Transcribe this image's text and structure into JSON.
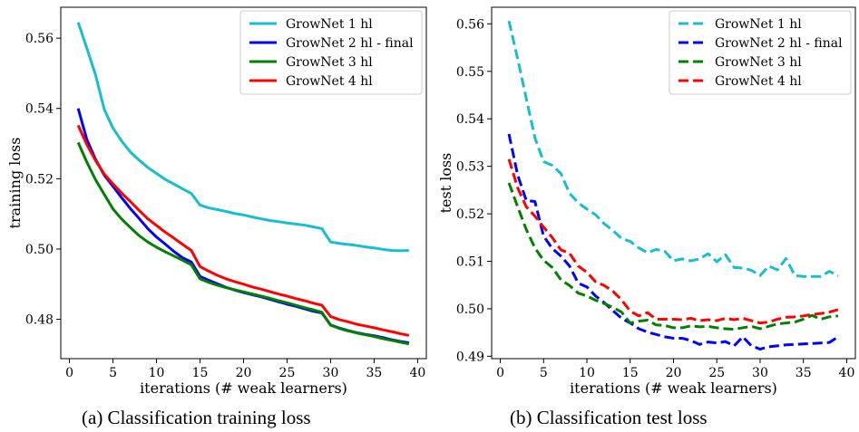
{
  "chart_data": [
    {
      "type": "line",
      "caption": "(a)  Classification training loss",
      "xlabel": "iterations (# weak learners)",
      "ylabel": "training loss",
      "xlim": [
        -1,
        41
      ],
      "ylim": [
        0.4688,
        0.5688
      ],
      "xticks": [
        0,
        5,
        10,
        15,
        20,
        25,
        30,
        35,
        40
      ],
      "xtick_labels": [
        "0",
        "5",
        "10",
        "15",
        "20",
        "25",
        "30",
        "35",
        "40"
      ],
      "yticks": [
        0.48,
        0.5,
        0.52,
        0.54,
        0.56
      ],
      "ytick_labels": [
        "0.48",
        "0.50",
        "0.52",
        "0.54",
        "0.56"
      ],
      "line_style": "solid",
      "legend_position": "top-right",
      "grid": false,
      "x": [
        1,
        2,
        3,
        4,
        5,
        6,
        7,
        8,
        9,
        10,
        11,
        12,
        13,
        14,
        15,
        16,
        17,
        18,
        19,
        20,
        21,
        22,
        23,
        24,
        25,
        26,
        27,
        28,
        29,
        30,
        31,
        32,
        33,
        34,
        35,
        36,
        37,
        38,
        39
      ],
      "series": [
        {
          "name": "GrowNet 1 hl",
          "color": "#17becf",
          "values": [
            0.5645,
            0.5571,
            0.5495,
            0.5397,
            0.5344,
            0.5307,
            0.5276,
            0.5253,
            0.5232,
            0.5215,
            0.5198,
            0.5185,
            0.5171,
            0.5158,
            0.5125,
            0.5117,
            0.5112,
            0.5107,
            0.5101,
            0.5097,
            0.5091,
            0.5086,
            0.5081,
            0.5078,
            0.5074,
            0.5071,
            0.5068,
            0.5063,
            0.5058,
            0.502,
            0.5016,
            0.5013,
            0.501,
            0.5006,
            0.5003,
            0.4999,
            0.4996,
            0.4995,
            0.4996
          ]
        },
        {
          "name": "GrowNet 2 hl - final",
          "color": "#0000ff",
          "values": [
            0.54,
            0.5311,
            0.5255,
            0.521,
            0.5178,
            0.5146,
            0.5115,
            0.5087,
            0.5058,
            0.5034,
            0.5014,
            0.4993,
            0.4975,
            0.4963,
            0.4922,
            0.4911,
            0.4901,
            0.4891,
            0.4883,
            0.4876,
            0.487,
            0.4864,
            0.4857,
            0.485,
            0.4843,
            0.4837,
            0.483,
            0.4823,
            0.4818,
            0.4784,
            0.4775,
            0.4768,
            0.4762,
            0.4757,
            0.4753,
            0.4748,
            0.4742,
            0.4737,
            0.4733
          ]
        },
        {
          "name": "GrowNet 3 hl",
          "color": "#008000",
          "values": [
            0.5303,
            0.5247,
            0.5197,
            0.5155,
            0.5114,
            0.5085,
            0.5061,
            0.5038,
            0.502,
            0.5005,
            0.4992,
            0.498,
            0.4968,
            0.4955,
            0.4915,
            0.4905,
            0.4897,
            0.489,
            0.4884,
            0.4878,
            0.4872,
            0.4866,
            0.486,
            0.4853,
            0.4847,
            0.484,
            0.4833,
            0.4827,
            0.482,
            0.4783,
            0.4774,
            0.4767,
            0.4761,
            0.4756,
            0.4751,
            0.4745,
            0.474,
            0.4735,
            0.473
          ]
        },
        {
          "name": "GrowNet 4 hl",
          "color": "#ff0000",
          "values": [
            0.5352,
            0.5297,
            0.5252,
            0.5213,
            0.5185,
            0.5159,
            0.5135,
            0.511,
            0.5086,
            0.5067,
            0.5048,
            0.5031,
            0.5013,
            0.4996,
            0.495,
            0.4937,
            0.4925,
            0.4915,
            0.4907,
            0.49,
            0.4892,
            0.4886,
            0.4879,
            0.4872,
            0.4866,
            0.4859,
            0.4853,
            0.4846,
            0.484,
            0.4808,
            0.4799,
            0.4793,
            0.4786,
            0.4781,
            0.4776,
            0.477,
            0.4765,
            0.4759,
            0.4754
          ]
        }
      ]
    },
    {
      "type": "line",
      "caption": "(b)  Classification test loss",
      "xlabel": "iterations (# weak learners)",
      "ylabel": "test loss",
      "xlim": [
        -1,
        41
      ],
      "ylim": [
        0.4895,
        0.5635
      ],
      "xticks": [
        0,
        5,
        10,
        15,
        20,
        25,
        30,
        35,
        40
      ],
      "xtick_labels": [
        "0",
        "5",
        "10",
        "15",
        "20",
        "25",
        "30",
        "35",
        "40"
      ],
      "yticks": [
        0.49,
        0.5,
        0.51,
        0.52,
        0.53,
        0.54,
        0.55,
        0.56
      ],
      "ytick_labels": [
        "0.49",
        "0.50",
        "0.51",
        "0.52",
        "0.53",
        "0.54",
        "0.55",
        "0.56"
      ],
      "line_style": "dashed",
      "legend_position": "top-right",
      "grid": false,
      "x": [
        1,
        2,
        3,
        4,
        5,
        6,
        7,
        8,
        9,
        10,
        11,
        12,
        13,
        14,
        15,
        16,
        17,
        18,
        19,
        20,
        21,
        22,
        23,
        24,
        25,
        26,
        27,
        28,
        29,
        30,
        31,
        32,
        33,
        34,
        35,
        36,
        37,
        38,
        39
      ],
      "series": [
        {
          "name": "GrowNet 1 hl",
          "color": "#17becf",
          "values": [
            0.5606,
            0.5527,
            0.5443,
            0.536,
            0.531,
            0.5302,
            0.5285,
            0.5243,
            0.5223,
            0.521,
            0.5198,
            0.5179,
            0.5165,
            0.5148,
            0.5142,
            0.5128,
            0.5118,
            0.5125,
            0.5121,
            0.5101,
            0.5105,
            0.5101,
            0.5105,
            0.5116,
            0.5099,
            0.5114,
            0.5087,
            0.5086,
            0.5081,
            0.507,
            0.509,
            0.5082,
            0.5106,
            0.507,
            0.5068,
            0.5068,
            0.5068,
            0.5079,
            0.5069
          ]
        },
        {
          "name": "GrowNet 2 hl - final",
          "color": "#0000ff",
          "values": [
            0.5368,
            0.5282,
            0.5228,
            0.5226,
            0.5153,
            0.5127,
            0.5111,
            0.509,
            0.5054,
            0.5046,
            0.5027,
            0.5013,
            0.4996,
            0.498,
            0.497,
            0.4958,
            0.4951,
            0.4946,
            0.4941,
            0.4938,
            0.4938,
            0.4933,
            0.4925,
            0.493,
            0.4928,
            0.4931,
            0.4922,
            0.4941,
            0.4922,
            0.4915,
            0.492,
            0.4922,
            0.4924,
            0.4925,
            0.4926,
            0.4927,
            0.4928,
            0.4929,
            0.4941
          ]
        },
        {
          "name": "GrowNet 3 hl",
          "color": "#008000",
          "values": [
            0.5265,
            0.5215,
            0.5167,
            0.5128,
            0.5102,
            0.5087,
            0.5061,
            0.5049,
            0.5033,
            0.5027,
            0.5018,
            0.5011,
            0.5003,
            0.4993,
            0.497,
            0.4974,
            0.4976,
            0.4966,
            0.4965,
            0.496,
            0.496,
            0.4964,
            0.4962,
            0.4963,
            0.496,
            0.4958,
            0.4957,
            0.496,
            0.4963,
            0.4958,
            0.4963,
            0.4968,
            0.497,
            0.4972,
            0.4978,
            0.4986,
            0.4978,
            0.4983,
            0.4985
          ]
        },
        {
          "name": "GrowNet 4 hl",
          "color": "#ff0000",
          "values": [
            0.5315,
            0.5255,
            0.5215,
            0.5195,
            0.5172,
            0.515,
            0.5124,
            0.5117,
            0.509,
            0.5077,
            0.5057,
            0.5049,
            0.5037,
            0.5019,
            0.4995,
            0.4985,
            0.4992,
            0.4978,
            0.4978,
            0.4978,
            0.4977,
            0.498,
            0.4975,
            0.4977,
            0.4975,
            0.498,
            0.4977,
            0.498,
            0.4975,
            0.497,
            0.4972,
            0.4978,
            0.4982,
            0.4983,
            0.4985,
            0.4988,
            0.499,
            0.4993,
            0.4998
          ]
        }
      ]
    }
  ]
}
